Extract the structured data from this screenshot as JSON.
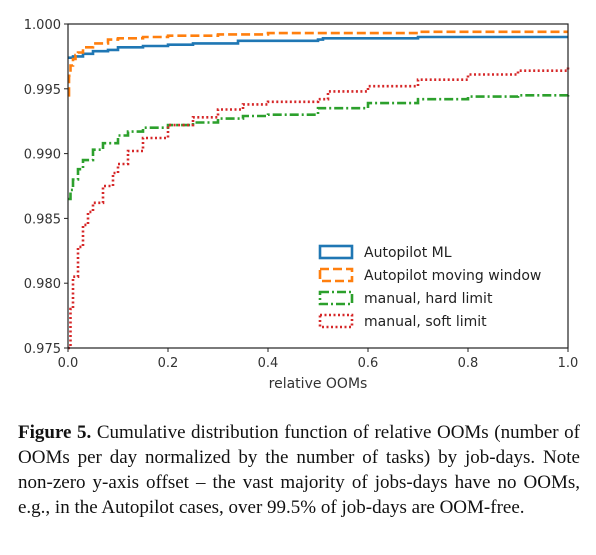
{
  "chart_data": {
    "type": "line",
    "title": "",
    "xlabel": "relative OOMs",
    "ylabel": "",
    "xlim": [
      0.0,
      1.0
    ],
    "ylim": [
      0.975,
      1.0
    ],
    "x_ticks": [
      "0.0",
      "0.2",
      "0.4",
      "0.6",
      "0.8",
      "1.0"
    ],
    "y_ticks": [
      "0.975",
      "0.980",
      "0.985",
      "0.990",
      "0.995",
      "1.000"
    ],
    "grid": false,
    "legend_position": "lower-right",
    "series": [
      {
        "name": "Autopilot ML",
        "color": "#1f77b4",
        "style": "solid",
        "x": [
          0.0,
          0.01,
          0.03,
          0.05,
          0.08,
          0.1,
          0.15,
          0.2,
          0.25,
          0.3,
          0.33,
          0.34,
          0.4,
          0.5,
          0.51,
          0.6,
          0.7,
          0.8,
          0.9,
          1.0
        ],
        "y": [
          0.9974,
          0.9975,
          0.9977,
          0.9979,
          0.998,
          0.9982,
          0.9983,
          0.9984,
          0.9985,
          0.9985,
          0.9985,
          0.9987,
          0.9987,
          0.9988,
          0.9989,
          0.9989,
          0.999,
          0.999,
          0.999,
          0.999
        ]
      },
      {
        "name": "Autopilot moving window",
        "color": "#ff7f0e",
        "style": "dashed",
        "x": [
          0.0,
          0.002,
          0.005,
          0.01,
          0.015,
          0.02,
          0.03,
          0.05,
          0.08,
          0.1,
          0.15,
          0.2,
          0.3,
          0.4,
          0.5,
          0.6,
          0.7,
          0.8,
          0.9,
          1.0
        ],
        "y": [
          0.9945,
          0.996,
          0.9968,
          0.9973,
          0.9976,
          0.9978,
          0.9982,
          0.9985,
          0.9988,
          0.9989,
          0.999,
          0.9991,
          0.9992,
          0.9993,
          0.9993,
          0.9993,
          0.9994,
          0.9994,
          0.9994,
          0.9994
        ]
      },
      {
        "name": "manual, hard limit",
        "color": "#2ca02c",
        "style": "dashdot",
        "x": [
          0.0,
          0.005,
          0.01,
          0.02,
          0.03,
          0.05,
          0.07,
          0.1,
          0.12,
          0.15,
          0.2,
          0.25,
          0.3,
          0.35,
          0.4,
          0.5,
          0.6,
          0.7,
          0.8,
          0.9,
          1.0
        ],
        "y": [
          0.9865,
          0.9872,
          0.988,
          0.9888,
          0.9895,
          0.9903,
          0.9908,
          0.9914,
          0.9917,
          0.992,
          0.9922,
          0.9924,
          0.9927,
          0.9929,
          0.993,
          0.9935,
          0.9939,
          0.9942,
          0.9944,
          0.9945,
          0.9947
        ]
      },
      {
        "name": "manual, soft limit",
        "color": "#d62728",
        "style": "dotted",
        "x": [
          0.0,
          0.005,
          0.01,
          0.02,
          0.03,
          0.04,
          0.05,
          0.07,
          0.09,
          0.1,
          0.12,
          0.15,
          0.2,
          0.25,
          0.3,
          0.35,
          0.4,
          0.5,
          0.52,
          0.6,
          0.7,
          0.8,
          0.9,
          1.0
        ],
        "y": [
          0.975,
          0.978,
          0.9805,
          0.9828,
          0.9845,
          0.9855,
          0.9862,
          0.9875,
          0.9885,
          0.9892,
          0.9902,
          0.9912,
          0.9922,
          0.9928,
          0.9934,
          0.9938,
          0.994,
          0.9942,
          0.9948,
          0.9952,
          0.9957,
          0.9961,
          0.9964,
          0.9968
        ]
      }
    ]
  },
  "caption": {
    "label": "Figure 5.",
    "text": "Cumulative distribution function of relative OOMs (number of OOMs per day normalized by the number of tasks) by job-days. Note non-zero y-axis offset – the vast majority of jobs-days have no OOMs, e.g., in the Autopilot cases, over 99.5% of job-days are OOM-free."
  }
}
